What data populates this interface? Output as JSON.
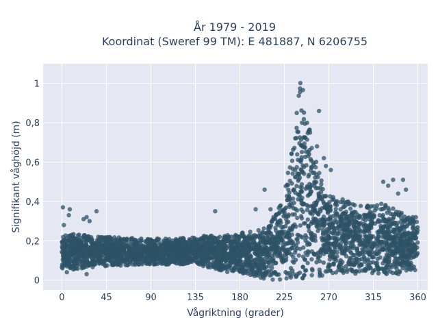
{
  "chart_data": {
    "type": "scatter",
    "title_lines": [
      "År 1979 - 2019",
      "Koordinat (Sweref 99 TM): E 481887, N 6206755"
    ],
    "xlabel": "Vågriktning (grader)",
    "ylabel": "Signifikant våghöjd (m)",
    "xlim": [
      -19,
      370
    ],
    "ylim": [
      -0.05,
      1.1
    ],
    "x_ticks": [
      0,
      45,
      90,
      135,
      180,
      225,
      270,
      315,
      360
    ],
    "x_tick_labels": [
      "0",
      "45",
      "90",
      "135",
      "180",
      "225",
      "270",
      "315",
      "360"
    ],
    "y_ticks": [
      0,
      0.2,
      0.4,
      0.6,
      0.8,
      1
    ],
    "y_tick_labels": [
      "0",
      "0,2",
      "0,4",
      "0,6",
      "0,8",
      "1"
    ],
    "grid": true,
    "marker_color": "#2e5266",
    "background_color": "#e5e8f2",
    "envelope": {
      "direction": [
        0,
        10,
        20,
        45,
        90,
        135,
        150,
        165,
        180,
        195,
        205,
        215,
        225,
        232,
        238,
        242,
        246,
        250,
        255,
        260,
        265,
        270,
        280,
        290,
        300,
        310,
        320,
        330,
        340,
        350,
        360
      ],
      "upper": [
        0.22,
        0.24,
        0.23,
        0.22,
        0.21,
        0.22,
        0.23,
        0.23,
        0.24,
        0.25,
        0.28,
        0.33,
        0.45,
        0.65,
        0.92,
        1.05,
        0.95,
        0.78,
        0.65,
        0.55,
        0.5,
        0.45,
        0.42,
        0.4,
        0.38,
        0.38,
        0.4,
        0.38,
        0.35,
        0.33,
        0.3
      ],
      "lower": [
        0.06,
        0.05,
        0.06,
        0.07,
        0.08,
        0.08,
        0.06,
        0.04,
        0.03,
        0.02,
        0.0,
        0.0,
        0.0,
        0.0,
        0.0,
        0.0,
        0.0,
        0.0,
        0.01,
        0.02,
        0.02,
        0.03,
        0.03,
        0.03,
        0.03,
        0.03,
        0.03,
        0.03,
        0.03,
        0.04,
        0.05
      ]
    },
    "outliers": [
      {
        "x": 1,
        "y": 0.37
      },
      {
        "x": 8,
        "y": 0.36
      },
      {
        "x": 7,
        "y": 0.33
      },
      {
        "x": 2,
        "y": 0.28
      },
      {
        "x": 22,
        "y": 0.31
      },
      {
        "x": 25,
        "y": 0.32
      },
      {
        "x": 28,
        "y": 0.3
      },
      {
        "x": 35,
        "y": 0.35
      },
      {
        "x": 155,
        "y": 0.35
      },
      {
        "x": 5,
        "y": 0.04
      },
      {
        "x": 25,
        "y": 0.03
      },
      {
        "x": 196,
        "y": 0.36
      },
      {
        "x": 211,
        "y": 0.36
      },
      {
        "x": 205,
        "y": 0.46
      },
      {
        "x": 248,
        "y": 0.8
      },
      {
        "x": 251,
        "y": 0.75
      },
      {
        "x": 258,
        "y": 0.68
      },
      {
        "x": 265,
        "y": 0.62
      },
      {
        "x": 267,
        "y": 0.58
      },
      {
        "x": 272,
        "y": 0.56
      },
      {
        "x": 260,
        "y": 0.86
      },
      {
        "x": 325,
        "y": 0.5
      },
      {
        "x": 330,
        "y": 0.48
      },
      {
        "x": 335,
        "y": 0.51
      },
      {
        "x": 345,
        "y": 0.51
      },
      {
        "x": 348,
        "y": 0.46
      },
      {
        "x": 340,
        "y": 0.44
      },
      {
        "x": 355,
        "y": 0.32
      },
      {
        "x": 358,
        "y": 0.32
      }
    ]
  }
}
